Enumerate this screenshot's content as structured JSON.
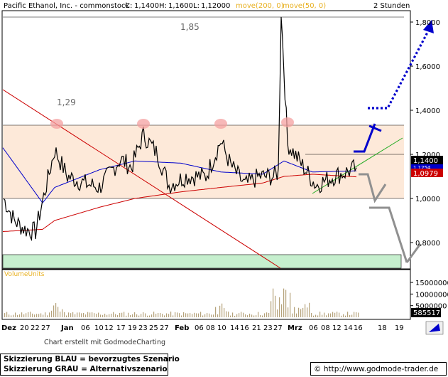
{
  "header": {
    "instrument": "Pacific Ethanol, Inc. - commonstock",
    "close_label": "C:",
    "close_val": "1,1400",
    "high_label": "H:",
    "high_val": "1,1600",
    "low_label": "L:",
    "low_val": "1,1200",
    "vol_val": "0",
    "ma200_label": "move(200, 0)",
    "ma50_label": "move(50, 0)",
    "timeframe": "2 Stunden"
  },
  "colors": {
    "price": "#000000",
    "ma200": "#cc0000",
    "ma50": "#0000cc",
    "range_fill": "#fde9d9",
    "support_fill": "#c6efce",
    "scenario_blue": "#0000cc",
    "scenario_gray": "#808080",
    "trend_green": "#22aa22",
    "down_red": "#cc0000",
    "markers": "#f4a0a0",
    "volume_bars": "#b5a27a"
  },
  "annotations": {
    "high_185": "1,85",
    "high_129": "1,29"
  },
  "price_axis": {
    "ticks": [
      "1,8000",
      "1,6000",
      "1,4000",
      "1,2000",
      "1,0000",
      "0,8000"
    ],
    "ticks_values": [
      1.8,
      1.6,
      1.4,
      1.2,
      1.0,
      0.8
    ]
  },
  "value_labels": {
    "last": "1,1400",
    "ma50": "1,1254",
    "ma200": "1,0979"
  },
  "volume": {
    "title": "VolumeUnits",
    "ticks": [
      "15000000",
      "10000000",
      "5000000"
    ],
    "last": "585517"
  },
  "x_axis": {
    "labels": [
      "Dez",
      "20",
      "22",
      "27",
      "Jan",
      "06",
      "10",
      "12",
      "17",
      "19",
      "23",
      "25",
      "27",
      "Feb",
      "06",
      "08",
      "10",
      "14",
      "16",
      "21",
      "23",
      "27",
      "Mrz",
      "06",
      "08",
      "12",
      "14",
      "16",
      "18",
      "19"
    ]
  },
  "footer": {
    "credit": "Chart erstellt mit GodmodeCharting",
    "legend_blue": "Skizzierung BLAU = bevorzugtes Szenario",
    "legend_gray": "Skizzierung GRAU = Alternativszenario",
    "url": "© http://www.godmode-trader.de"
  },
  "chart_data": {
    "type": "line",
    "title": "Pacific Ethanol, Inc. - commonstock",
    "timeframe": "2 Stunden",
    "ylim": [
      0.8,
      1.85
    ],
    "y_ticks": [
      0.8,
      1.0,
      1.2,
      1.4,
      1.6,
      1.8
    ],
    "series": [
      {
        "name": "Pacific Ethanol, Inc. - commonstock",
        "x": [
          "Dez",
          "20",
          "22",
          "27",
          "Jan",
          "06",
          "10",
          "12",
          "17",
          "19",
          "23",
          "25",
          "27",
          "Feb",
          "06",
          "08",
          "10",
          "14",
          "16",
          "21",
          "23",
          "27",
          "Mrz",
          "06",
          "08",
          "12",
          "14",
          "16"
        ],
        "values": [
          1.0,
          0.9,
          0.86,
          0.85,
          1.22,
          1.1,
          1.07,
          1.05,
          1.18,
          1.14,
          1.29,
          1.2,
          1.06,
          1.1,
          1.1,
          1.26,
          1.15,
          1.06,
          1.1,
          1.1,
          1.12,
          1.85,
          1.25,
          1.13,
          1.06,
          1.1,
          1.12,
          1.14
        ]
      },
      {
        "name": "move(50, 0)",
        "x": [
          "Dez",
          "27",
          "Jan",
          "12",
          "23",
          "Feb",
          "10",
          "21",
          "Mrz",
          "08",
          "16"
        ],
        "values": [
          1.23,
          0.98,
          1.05,
          1.13,
          1.17,
          1.16,
          1.12,
          1.11,
          1.17,
          1.12,
          1.125
        ]
      },
      {
        "name": "move(200, 0)",
        "x": [
          "Dez",
          "27",
          "Jan",
          "12",
          "23",
          "Feb",
          "10",
          "21",
          "Mrz",
          "08",
          "16"
        ],
        "values": [
          0.85,
          0.86,
          0.9,
          0.96,
          1.0,
          1.03,
          1.05,
          1.07,
          1.1,
          1.11,
          1.098
        ]
      }
    ],
    "volume_axis_ticks": [
      5000000,
      10000000,
      15000000
    ],
    "last_volume": 585517,
    "annotations": [
      "1,85",
      "1,29"
    ]
  }
}
